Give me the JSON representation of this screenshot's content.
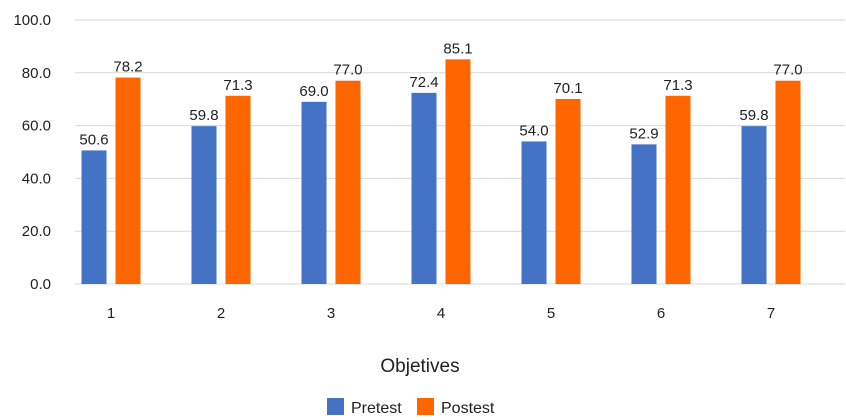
{
  "chart_data": {
    "type": "bar",
    "categories": [
      "1",
      "2",
      "3",
      "4",
      "5",
      "6",
      "7"
    ],
    "series": [
      {
        "name": "Pretest",
        "color": "#4472C4",
        "values": [
          50.6,
          59.8,
          69.0,
          72.4,
          54.0,
          52.9,
          59.8
        ]
      },
      {
        "name": "Postest",
        "color": "#FF6600",
        "values": [
          78.2,
          71.3,
          77.0,
          85.1,
          70.1,
          71.3,
          77.0
        ]
      }
    ],
    "xlabel": "Objetives",
    "ylabel": "",
    "ylim": [
      0,
      100
    ],
    "yticks": [
      "0.0",
      "20.0",
      "40.0",
      "60.0",
      "80.0",
      "100.0"
    ],
    "data_labels": true,
    "grid": true,
    "legend_position": "bottom"
  }
}
